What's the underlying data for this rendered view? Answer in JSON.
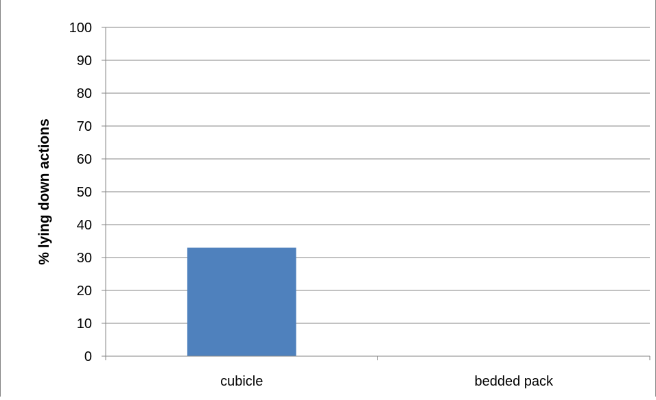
{
  "chart_data": {
    "type": "bar",
    "categories": [
      "cubicle",
      "bedded pack"
    ],
    "values": [
      33,
      0
    ],
    "title": "",
    "xlabel": "",
    "ylabel": "% lying down actions",
    "ylim": [
      0,
      100
    ],
    "yticks": [
      "0",
      "10",
      "20",
      "30",
      "40",
      "50",
      "60",
      "70",
      "80",
      "90",
      "100"
    ],
    "grid": true,
    "legend": "none",
    "colors": {
      "bar": "#4f81bd",
      "grid": "#868686",
      "axis": "#868686",
      "text": "#000000"
    }
  }
}
